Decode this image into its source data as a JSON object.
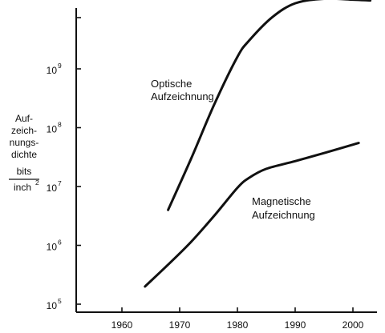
{
  "chart_data": {
    "type": "line",
    "title": "",
    "xlabel": "",
    "ylabel_lines": [
      "Auf-",
      "zeich-",
      "nungs-",
      "dichte"
    ],
    "ylabel_fraction": {
      "numerator": "bits",
      "denominator": "inch",
      "denominator_exponent": "2"
    },
    "x_ticks": [
      "1960",
      "1970",
      "1980",
      "1990",
      "2000"
    ],
    "y_ticks": [
      {
        "base": "10",
        "exp": "5"
      },
      {
        "base": "10",
        "exp": "6"
      },
      {
        "base": "10",
        "exp": "7"
      },
      {
        "base": "10",
        "exp": "8"
      },
      {
        "base": "10",
        "exp": "9"
      }
    ],
    "xlim": [
      1950,
      2004
    ],
    "ylim": [
      100000,
      30000000000
    ],
    "y_scale": "log",
    "grid": false,
    "series": [
      {
        "name": "Optische Aufzeichnung",
        "label_lines": [
          "Optische",
          "Aufzeichnung"
        ],
        "x": [
          1968,
          1972,
          1976,
          1980,
          1982,
          1986,
          1990,
          1995,
          2000,
          2003
        ],
        "y": [
          4000000,
          30000000,
          250000000,
          1600000000,
          3000000000,
          7500000000,
          13000000000,
          15500000000,
          15000000000,
          14500000000
        ]
      },
      {
        "name": "Magnetische Aufzeichnung",
        "label_lines": [
          "Magnetische",
          "Aufzeichnung"
        ],
        "x": [
          1964,
          1968,
          1972,
          1976,
          1980,
          1982,
          1985,
          1990,
          1995,
          2001
        ],
        "y": [
          200000,
          470000,
          1150000,
          3200000,
          9500000,
          14000000,
          20000000,
          27000000,
          37000000,
          55000000
        ]
      }
    ]
  }
}
